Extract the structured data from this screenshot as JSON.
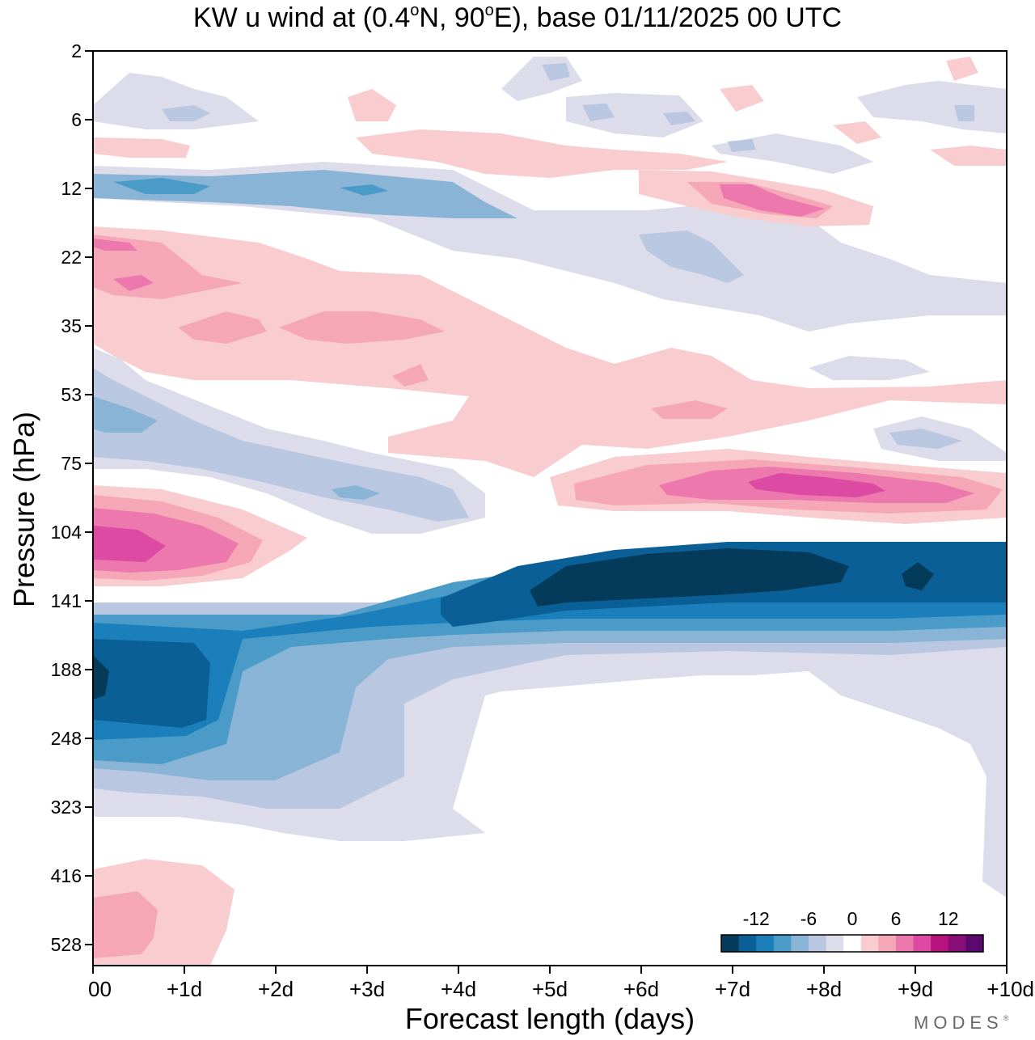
{
  "chart_data": {
    "type": "heatmap",
    "title": {
      "prefix": "KW u wind at (0.4",
      "deg1": "o",
      "mid": "N, 90",
      "deg2": "o",
      "suffix": "E),  base 01/11/2025  00 UTC"
    },
    "xlabel": "Forecast length (days)",
    "ylabel": "Pressure (hPa)",
    "x_ticks": [
      "00",
      "+1d",
      "+2d",
      "+3d",
      "+4d",
      "+5d",
      "+6d",
      "+7d",
      "+8d",
      "+9d",
      "+10d"
    ],
    "x_range_days": [
      0,
      10
    ],
    "y_ticks": [
      "2",
      "6",
      "12",
      "22",
      "35",
      "53",
      "75",
      "104",
      "141",
      "188",
      "248",
      "323",
      "416",
      "528"
    ],
    "y_range_hpa": [
      2,
      650
    ],
    "y_scale": "pressure levels (top = 2 hPa)",
    "colorbar": {
      "tick_labels": [
        "-12",
        "-6",
        "0",
        "6",
        "12"
      ],
      "colors": [
        "#043a5a",
        "#0a5f96",
        "#1b7fbb",
        "#4b9bc8",
        "#89b4d6",
        "#b9c7e1",
        "#dcdceb",
        "#ffffff",
        "#f9cdd0",
        "#f5a7b8",
        "#ec78ad",
        "#dc4aa3",
        "#b8127e",
        "#8a0e78",
        "#5a0a6e"
      ],
      "placement": "bottom-right"
    },
    "features": [
      {
        "name": "westerly_jet_100hPa",
        "sign": "positive",
        "max_value": 8,
        "days": [
          0,
          1.5
        ]
      },
      {
        "name": "easterly_jet_188hPa",
        "sign": "negative",
        "min_value": -14,
        "days": [
          0,
          1.2
        ]
      },
      {
        "name": "easterly_jet_130hPa",
        "sign": "negative",
        "min_value": -14,
        "days": [
          5,
          10
        ]
      },
      {
        "name": "westerly_band_80hPa",
        "sign": "positive",
        "max_value": 9,
        "days": [
          5.5,
          10
        ]
      },
      {
        "name": "easterly_band_12hPa",
        "sign": "negative",
        "min_value": -8,
        "days": [
          0,
          4
        ]
      },
      {
        "name": "westerly_band_14hPa",
        "sign": "positive",
        "max_value": 8,
        "days": [
          6,
          9.5
        ]
      }
    ]
  },
  "branding": {
    "text": "MODES",
    "mark": "®"
  }
}
